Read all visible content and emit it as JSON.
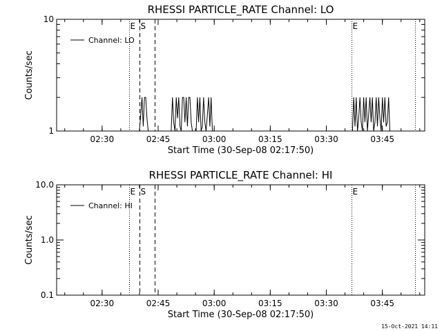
{
  "chart_data": [
    {
      "type": "line",
      "title": "RHESSI PARTICLE_RATE Channel: LO",
      "xlabel": "Start Time (30-Sep-08 02:17:50)",
      "ylabel": "Counts/sec",
      "yscale": "log",
      "ylim": [
        1,
        10
      ],
      "xlim": [
        "02:17:50",
        "03:56:20"
      ],
      "x_ticks": [
        "02:30",
        "02:45",
        "03:00",
        "03:15",
        "03:30",
        "03:45"
      ],
      "y_ticks": [
        "1",
        "10"
      ],
      "legend": {
        "entries": [
          "Channel: LO"
        ],
        "placement": "top-left"
      },
      "markers": [
        {
          "type": "dotted",
          "time": "02:37:10",
          "label": "E"
        },
        {
          "type": "dashed",
          "time": "02:40:00",
          "label": "S"
        },
        {
          "type": "dashed",
          "time": "02:44:10",
          "label": ""
        },
        {
          "type": "dotted",
          "time": "03:36:40",
          "label": "E"
        },
        {
          "type": "dotted",
          "time": "03:53:40",
          "label": ""
        }
      ],
      "series": [
        {
          "name": "Channel: LO",
          "segments": [
            {
              "x": [
                "02:40:00",
                "02:40:20",
                "02:40:40",
                "02:41:00",
                "02:41:20",
                "02:41:40",
                "02:42:00",
                "02:42:20"
              ],
              "y": [
                1,
                1.4,
                2,
                1.1,
                2,
                2,
                1.3,
                1
              ]
            },
            {
              "x": [
                "02:48:30",
                "02:48:50",
                "02:49:10",
                "02:49:30",
                "02:49:50",
                "02:50:10",
                "02:50:30",
                "02:50:50",
                "02:51:10",
                "02:51:30",
                "02:51:50",
                "02:52:10",
                "02:52:30",
                "02:52:50",
                "02:53:10",
                "02:53:30",
                "02:53:50",
                "02:54:10"
              ],
              "y": [
                1,
                2,
                1.2,
                1,
                2,
                1.3,
                2,
                1.1,
                1,
                2,
                2,
                1.2,
                2,
                1.1,
                2,
                2,
                1.2,
                1
              ]
            },
            {
              "x": [
                "02:55:10",
                "02:55:30",
                "02:55:50",
                "02:56:10",
                "02:56:30",
                "02:56:50",
                "02:57:10",
                "02:57:30",
                "02:57:50",
                "02:58:10",
                "02:58:30",
                "02:58:50",
                "02:59:10",
                "02:59:30"
              ],
              "y": [
                1,
                2,
                1.2,
                2,
                1,
                1.1,
                2,
                1.2,
                1,
                1.4,
                2,
                1.1,
                2,
                1
              ]
            },
            {
              "x": [
                "03:37:00",
                "03:37:20",
                "03:37:40",
                "03:38:00",
                "03:38:20",
                "03:38:40",
                "03:39:00",
                "03:39:20",
                "03:39:40",
                "03:40:00",
                "03:40:20",
                "03:40:40",
                "03:41:00",
                "03:41:20",
                "03:41:40",
                "03:42:00",
                "03:42:20",
                "03:42:40",
                "03:43:00",
                "03:43:20",
                "03:43:40",
                "03:44:00",
                "03:44:20",
                "03:44:40",
                "03:45:00",
                "03:45:20",
                "03:45:40",
                "03:46:00",
                "03:46:20",
                "03:46:40",
                "03:47:00"
              ],
              "y": [
                1,
                2,
                1.1,
                2,
                1,
                1.3,
                2,
                1.2,
                1,
                2,
                1.2,
                2,
                1,
                1.4,
                2,
                1.2,
                2,
                1,
                1.2,
                2,
                1.1,
                2,
                1.3,
                1,
                2,
                1.2,
                2,
                1.1,
                1.2,
                2,
                1
              ]
            }
          ]
        }
      ]
    },
    {
      "type": "line",
      "title": "RHESSI PARTICLE_RATE Channel: HI",
      "xlabel": "Start Time (30-Sep-08 02:17:50)",
      "ylabel": "Counts/sec",
      "yscale": "log",
      "ylim": [
        0.1,
        10
      ],
      "xlim": [
        "02:17:50",
        "03:56:20"
      ],
      "x_ticks": [
        "02:30",
        "02:45",
        "03:00",
        "03:15",
        "03:30",
        "03:45"
      ],
      "y_ticks": [
        "0.1",
        "1.0",
        "10.0"
      ],
      "legend": {
        "entries": [
          "Channel: HI"
        ],
        "placement": "top-left"
      },
      "markers": [
        {
          "type": "dotted",
          "time": "02:37:10",
          "label": "E"
        },
        {
          "type": "dashed",
          "time": "02:40:00",
          "label": "S"
        },
        {
          "type": "dashed",
          "time": "02:44:10",
          "label": ""
        },
        {
          "type": "dotted",
          "time": "03:36:40",
          "label": "E"
        },
        {
          "type": "dotted",
          "time": "03:53:40",
          "label": ""
        }
      ],
      "series": [
        {
          "name": "Channel: HI",
          "segments": []
        }
      ]
    }
  ],
  "footer": "15-Oct-2021 14:11"
}
